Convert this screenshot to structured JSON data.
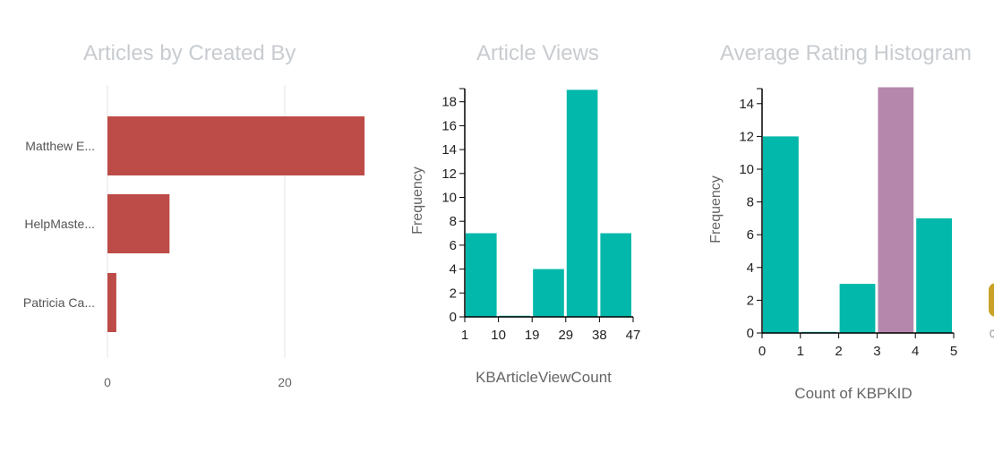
{
  "charts": {
    "created_by": {
      "title": "Articles by Created By",
      "bar_color": "#bd4b47",
      "x_max": 29.5
    },
    "views": {
      "title": "Article Views",
      "bar_color": "#01b8aa"
    },
    "rating": {
      "title": "Average Rating Histogram",
      "bar_color": "#01b8aa",
      "highlight_color": "#b687ac"
    }
  },
  "edge": {
    "tick": "0"
  },
  "chart_data": [
    {
      "type": "bar",
      "orientation": "horizontal",
      "title": "Articles by Created By",
      "categories": [
        "Matthew E...",
        "HelpMaste...",
        "Patricia Ca..."
      ],
      "values": [
        29,
        7,
        1
      ],
      "x_ticks": [
        "0",
        "20"
      ],
      "grid": true
    },
    {
      "type": "bar",
      "subtype": "histogram",
      "title": "Article Views",
      "xlabel": "KBArticleViewCount",
      "ylabel": "Frequency",
      "bins": [
        [
          1,
          10
        ],
        [
          10,
          19
        ],
        [
          19,
          29
        ],
        [
          29,
          38
        ],
        [
          38,
          47
        ]
      ],
      "values": [
        7,
        0,
        4,
        19,
        7
      ],
      "x_ticks": [
        "1",
        "10",
        "19",
        "29",
        "38",
        "47"
      ],
      "y_ticks": [
        "0",
        "2",
        "4",
        "6",
        "8",
        "10",
        "12",
        "14",
        "16",
        "18"
      ],
      "ylim": [
        0,
        19
      ]
    },
    {
      "type": "bar",
      "subtype": "histogram",
      "title": "Average Rating Histogram",
      "xlabel": "Count of KBPKID",
      "ylabel": "Frequency",
      "bins": [
        [
          0,
          1
        ],
        [
          1,
          2
        ],
        [
          2,
          3
        ],
        [
          3,
          4
        ],
        [
          4,
          5
        ]
      ],
      "values": [
        12,
        0,
        3,
        15,
        7
      ],
      "highlighted_bin": 3,
      "x_ticks": [
        "0",
        "1",
        "2",
        "3",
        "4",
        "5"
      ],
      "y_ticks": [
        "0",
        "2",
        "4",
        "6",
        "8",
        "10",
        "12",
        "14"
      ],
      "ylim": [
        0,
        15
      ]
    }
  ]
}
